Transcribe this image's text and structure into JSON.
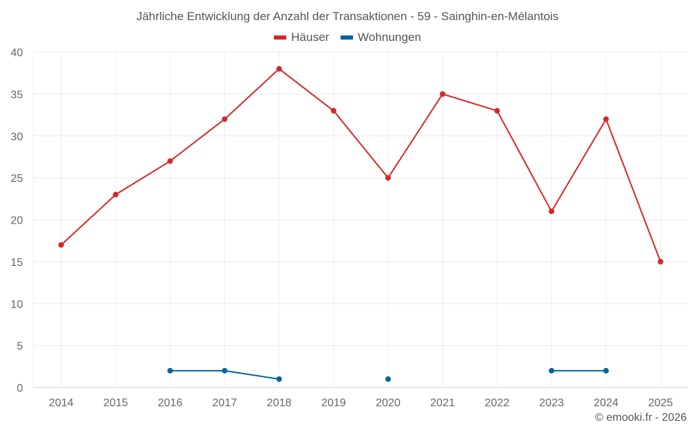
{
  "chart_data": {
    "type": "line",
    "title": "Jährliche Entwicklung der Anzahl der Transaktionen - 59 - Sainghin-en-Mélantois",
    "xlabel": "",
    "ylabel": "",
    "categories": [
      "2014",
      "2015",
      "2016",
      "2017",
      "2018",
      "2019",
      "2020",
      "2021",
      "2022",
      "2023",
      "2024",
      "2025"
    ],
    "ylim": [
      0,
      40
    ],
    "yticks": [
      0,
      5,
      10,
      15,
      20,
      25,
      30,
      35,
      40
    ],
    "grid": true,
    "legend_position": "top-center",
    "series": [
      {
        "name": "Häuser",
        "color": "#d62728",
        "values": [
          17,
          23,
          27,
          32,
          38,
          33,
          25,
          35,
          33,
          21,
          32,
          15
        ]
      },
      {
        "name": "Wohnungen",
        "color": "#006699",
        "values": [
          null,
          null,
          2,
          2,
          1,
          null,
          1,
          null,
          null,
          2,
          2,
          null
        ]
      }
    ]
  },
  "credit": "© emooki.fr - 2026"
}
